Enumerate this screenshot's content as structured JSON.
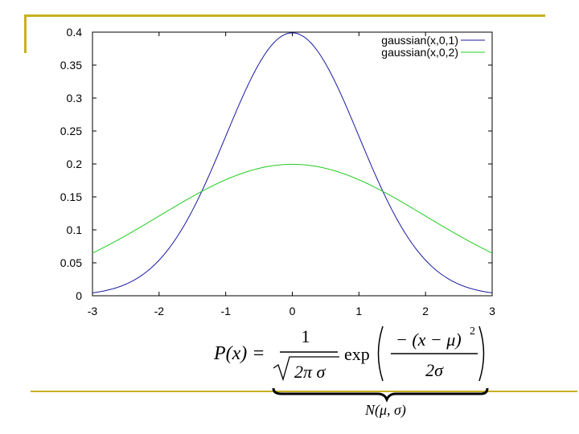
{
  "colors": {
    "frame": "#c9b020",
    "series1": "#1a1aa0",
    "series2": "#22cc22",
    "axis": "#000000"
  },
  "chart_data": {
    "type": "line",
    "xlim": [
      -3,
      3
    ],
    "ylim": [
      0,
      0.4
    ],
    "x_ticks": [
      "-3",
      "-2",
      "-1",
      "0",
      "1",
      "2",
      "3"
    ],
    "y_ticks": [
      "0",
      "0.05",
      "0.1",
      "0.15",
      "0.2",
      "0.25",
      "0.3",
      "0.35",
      "0.4"
    ],
    "legend_position": "top-right",
    "grid": false,
    "series": [
      {
        "name": "gaussian(x,0,1)",
        "mu": 0,
        "sigma": 1,
        "color": "#1a1aa0"
      },
      {
        "name": "gaussian(x,0,2)",
        "mu": 0,
        "sigma": 2,
        "color": "#22cc22"
      }
    ]
  },
  "formula": {
    "lhs": "P(x) =",
    "numerator": "1",
    "sqrt_body": "2π σ",
    "exp_word": "exp",
    "inner_numerator": "− (x − μ)",
    "exponent": "2",
    "inner_denominator": "2σ"
  },
  "normal_label": "N(μ, σ)"
}
